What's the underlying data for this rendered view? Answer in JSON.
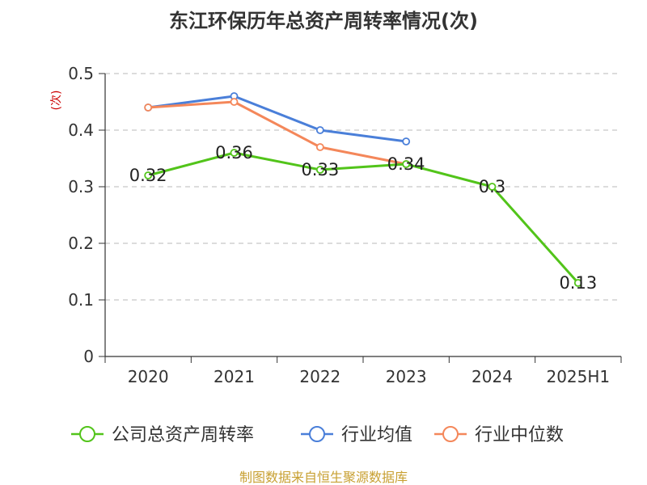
{
  "title": "东江环保历年总资产周转率情况(次)",
  "source": "制图数据来自恒生聚源数据库",
  "chart_data": {
    "type": "line",
    "title": "东江环保历年总资产周转率情况(次)",
    "ylabel": "(次)",
    "xlabel": "",
    "categories": [
      "2020",
      "2021",
      "2022",
      "2023",
      "2024",
      "2025H1"
    ],
    "ylim": [
      0,
      0.5
    ],
    "yticks": [
      0,
      0.1,
      0.2,
      0.3,
      0.4,
      0.5
    ],
    "ytick_labels": [
      "0",
      "0.1",
      "0.2",
      "0.3",
      "0.4",
      "0.5"
    ],
    "grid": true,
    "legend_position": "bottom",
    "series": [
      {
        "name": "公司总资产周转率",
        "color": "#52c41a",
        "values": [
          0.32,
          0.36,
          0.33,
          0.34,
          0.3,
          0.13
        ],
        "labels": [
          "0.32",
          "0.36",
          "0.33",
          "0.34",
          "0.3",
          "0.13"
        ]
      },
      {
        "name": "行业均值",
        "color": "#4a7fd9",
        "values": [
          0.44,
          0.46,
          0.4,
          0.38,
          null,
          null
        ]
      },
      {
        "name": "行业中位数",
        "color": "#f4875a",
        "values": [
          0.44,
          0.45,
          0.37,
          0.34,
          null,
          null
        ]
      }
    ]
  }
}
